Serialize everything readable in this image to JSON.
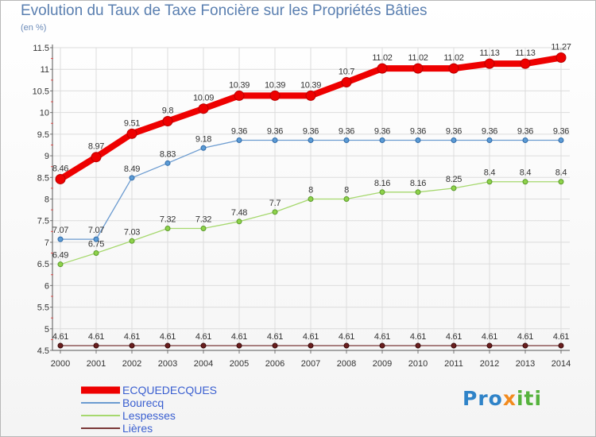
{
  "chart_data": {
    "type": "line",
    "title": "Evolution du Taux de Taxe Foncière sur les Propriétés Bâties",
    "unit": "(en %)",
    "x": [
      "2000",
      "2001",
      "2002",
      "2003",
      "2004",
      "2005",
      "2006",
      "2007",
      "2008",
      "2009",
      "2010",
      "2011",
      "2012",
      "2013",
      "2014"
    ],
    "ylim": [
      4.5,
      11.5
    ],
    "yticks": [
      "4.5",
      "5",
      "5.5",
      "6",
      "6.5",
      "7",
      "7.5",
      "8",
      "8.5",
      "9",
      "9.5",
      "10",
      "10.5",
      "11",
      "11.5"
    ],
    "series": [
      {
        "name": "ECQUEDECQUES",
        "color": "#ee0000",
        "values": [
          8.46,
          8.97,
          9.51,
          9.8,
          10.09,
          10.39,
          10.39,
          10.39,
          10.7,
          11.02,
          11.02,
          11.02,
          11.13,
          11.13,
          11.27
        ],
        "labels": [
          "8.46",
          "8.97",
          "9.51",
          "9.8",
          "10.09",
          "10.39",
          "10.39",
          "10.39",
          "10.7",
          "11.02",
          "11.02",
          "11.02",
          "11.13",
          "11.13",
          "11.27"
        ]
      },
      {
        "name": "Bourecq",
        "color": "#6b9bd0",
        "values": [
          7.07,
          7.07,
          8.49,
          8.83,
          9.18,
          9.36,
          9.36,
          9.36,
          9.36,
          9.36,
          9.36,
          9.36,
          9.36,
          9.36,
          9.36
        ],
        "labels": [
          "7.07",
          "7.07",
          "8.49",
          "8.83",
          "9.18",
          "9.36",
          "9.36",
          "9.36",
          "9.36",
          "9.36",
          "9.36",
          "9.36",
          "9.36",
          "9.36",
          "9.36"
        ]
      },
      {
        "name": "Lespesses",
        "color": "#a6d86e",
        "values": [
          6.49,
          6.75,
          7.03,
          7.32,
          7.32,
          7.48,
          7.7,
          8,
          8,
          8.16,
          8.16,
          8.25,
          8.4,
          8.4,
          8.4
        ],
        "labels": [
          "6.49",
          "6.75",
          "7.03",
          "7.32",
          "7.32",
          "7.48",
          "7.7",
          "8",
          "8",
          "8.16",
          "8.16",
          "8.25",
          "8.4",
          "8.4",
          "8.4"
        ]
      },
      {
        "name": "Lières",
        "color": "#7a3838",
        "values": [
          4.61,
          4.61,
          4.61,
          4.61,
          4.61,
          4.61,
          4.61,
          4.61,
          4.61,
          4.61,
          4.61,
          4.61,
          4.61,
          4.61,
          4.61
        ],
        "labels": [
          "4.61",
          "4.61",
          "4.61",
          "4.61",
          "4.61",
          "4.61",
          "4.61",
          "4.61",
          "4.61",
          "4.61",
          "4.61",
          "4.61",
          "4.61",
          "4.61",
          "4.61"
        ]
      }
    ]
  },
  "logo": {
    "p1": "Pro",
    "p2": "x",
    "p3": "iti"
  }
}
